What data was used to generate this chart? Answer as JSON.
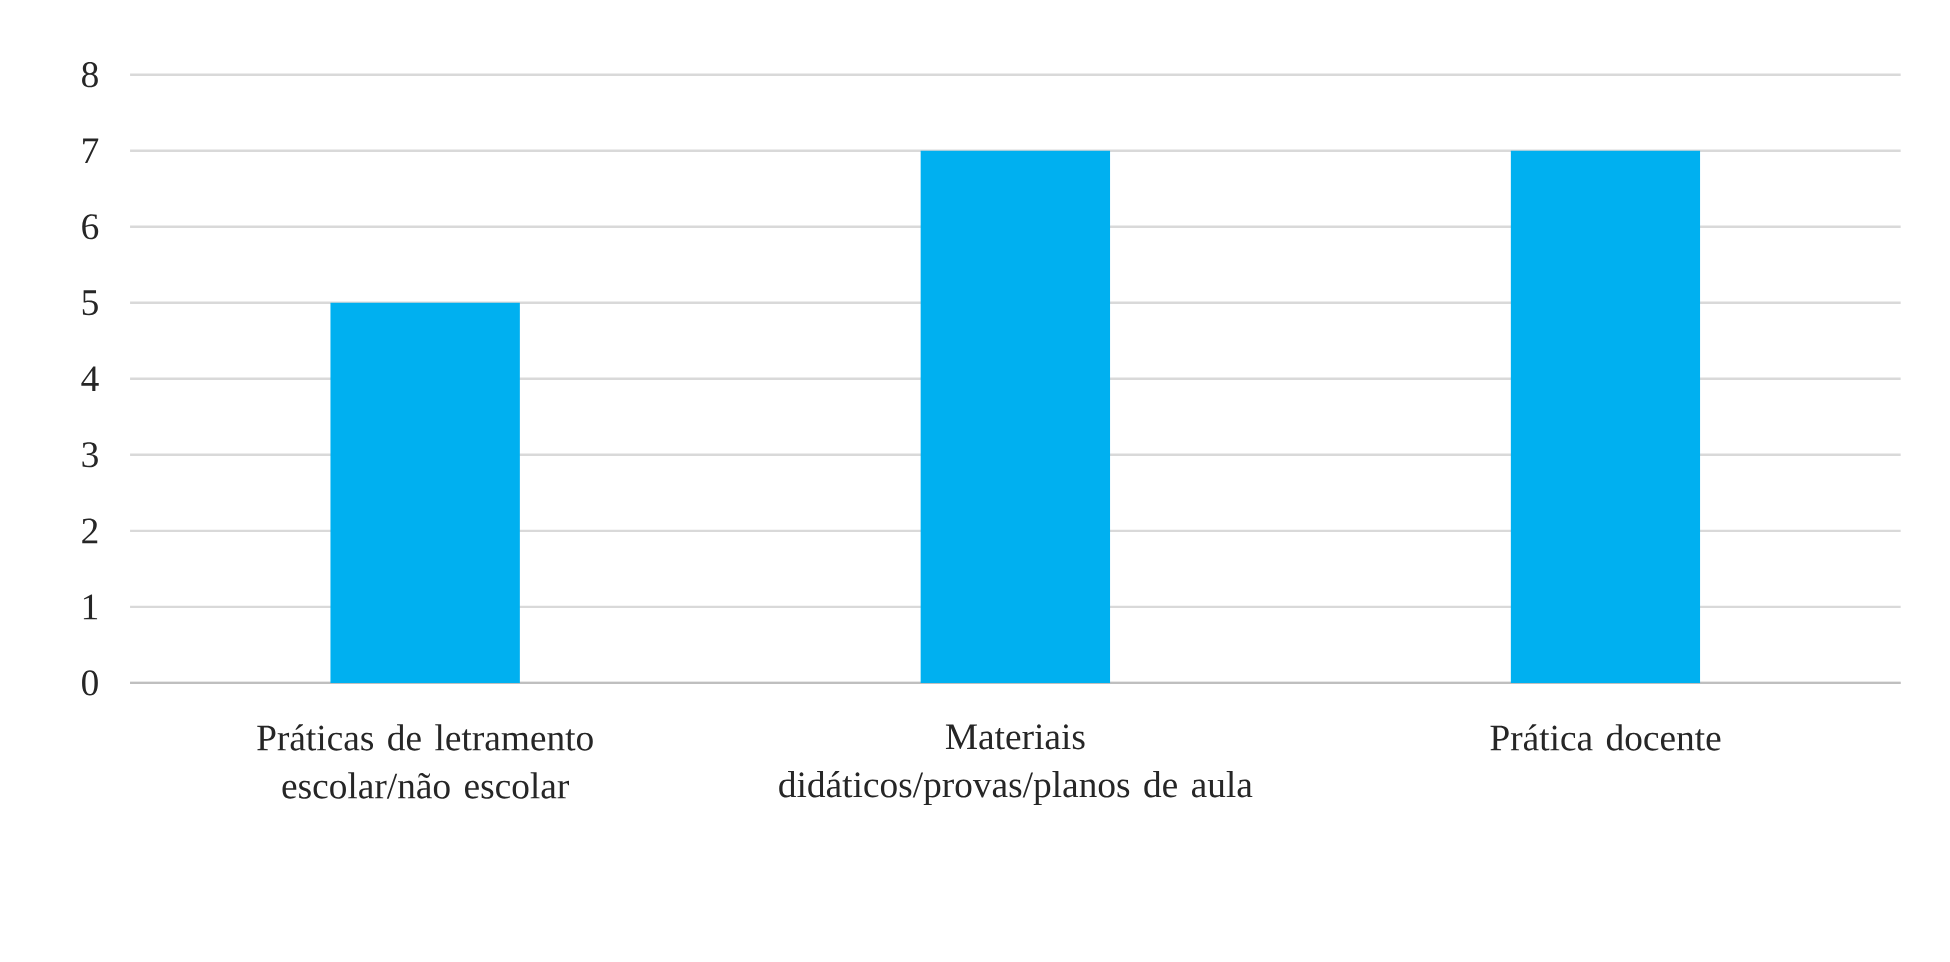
{
  "chart_data": {
    "type": "bar",
    "categories": [
      "Práticas de letramento escolar/não escolar",
      "Materiais didáticos/provas/planos de aula",
      "Prática docente"
    ],
    "values": [
      5,
      7,
      7
    ],
    "color": "#00b0f0",
    "ylim": [
      0,
      8
    ],
    "yticks": [
      0,
      1,
      2,
      3,
      4,
      5,
      6,
      7,
      8
    ],
    "grid": "y"
  }
}
